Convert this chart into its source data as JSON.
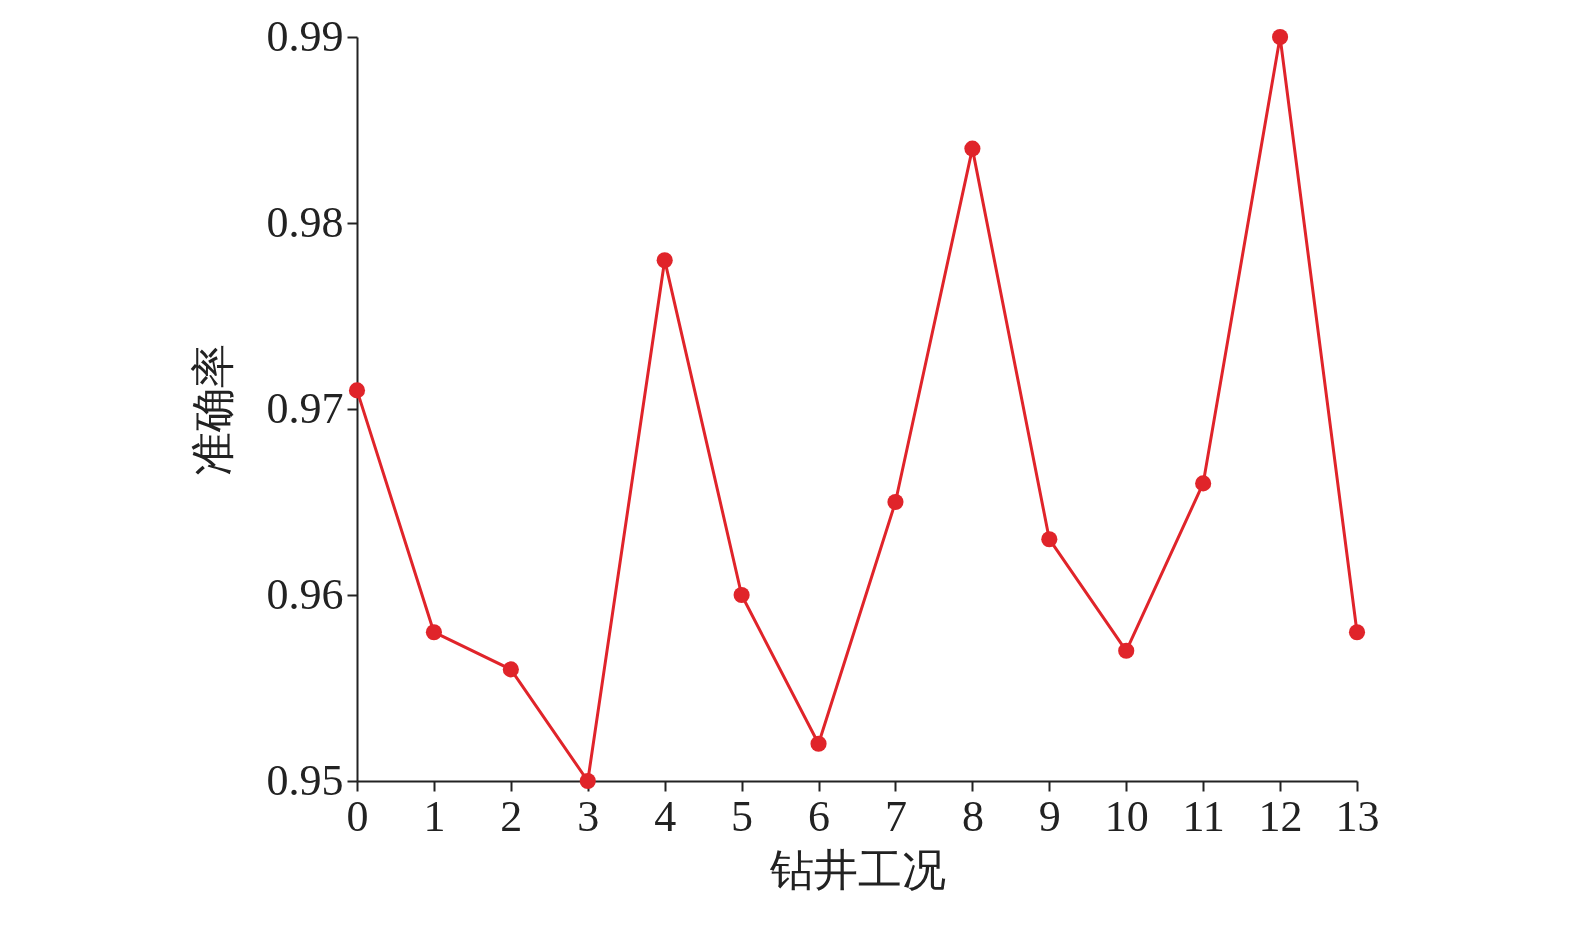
{
  "chart_data": {
    "type": "line",
    "xlabel": "钻井工况",
    "ylabel": "准确率",
    "x": [
      0,
      1,
      2,
      3,
      4,
      5,
      6,
      7,
      8,
      9,
      10,
      11,
      12,
      13
    ],
    "series": [
      {
        "color": "#e0242a",
        "values": [
          0.971,
          0.958,
          0.956,
          0.95,
          0.978,
          0.96,
          0.952,
          0.965,
          0.984,
          0.963,
          0.957,
          0.966,
          0.99,
          0.958
        ]
      }
    ],
    "xlim": [
      0,
      13
    ],
    "xticks": [
      0,
      1,
      2,
      3,
      4,
      5,
      6,
      7,
      8,
      9,
      10,
      11,
      12,
      13
    ],
    "ylim": [
      0.95,
      0.99
    ],
    "yticks": [
      0.95,
      0.96,
      0.97,
      0.98,
      0.99
    ],
    "grid": false,
    "marker": "circle",
    "line_style": "solid"
  }
}
